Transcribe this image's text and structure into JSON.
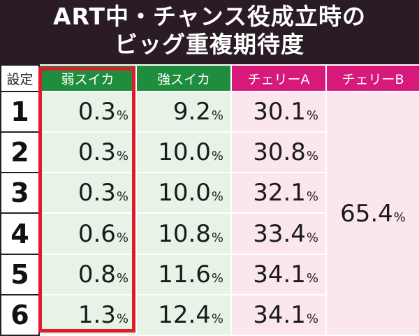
{
  "title": {
    "line1": "ART中・チャンス役成立時の",
    "line2": "ビッグ重複期待度"
  },
  "headers": {
    "setting": "設定",
    "col1": "弱スイカ",
    "col2": "強スイカ",
    "col3": "チェリーA",
    "col4": "チェリーB"
  },
  "rows": [
    {
      "setting": "1",
      "weak_suika": "0.3",
      "strong_suika": "9.2",
      "cherry_a": "30.1"
    },
    {
      "setting": "2",
      "weak_suika": "0.3",
      "strong_suika": "10.0",
      "cherry_a": "30.8"
    },
    {
      "setting": "3",
      "weak_suika": "0.3",
      "strong_suika": "10.0",
      "cherry_a": "32.1"
    },
    {
      "setting": "4",
      "weak_suika": "0.6",
      "strong_suika": "10.8",
      "cherry_a": "33.4"
    },
    {
      "setting": "5",
      "weak_suika": "0.8",
      "strong_suika": "11.6",
      "cherry_a": "34.1"
    },
    {
      "setting": "6",
      "weak_suika": "1.3",
      "strong_suika": "12.4",
      "cherry_a": "34.1"
    }
  ],
  "cherry_b_all": "65.4",
  "unit": "%",
  "colors": {
    "title_bg": "#2a1b25",
    "green_header": "#1f8d3e",
    "pink_header": "#d7197b",
    "green_cell": "#e6f3e6",
    "pink_cell": "#fbe6ee",
    "highlight": "#e01a2a"
  }
}
